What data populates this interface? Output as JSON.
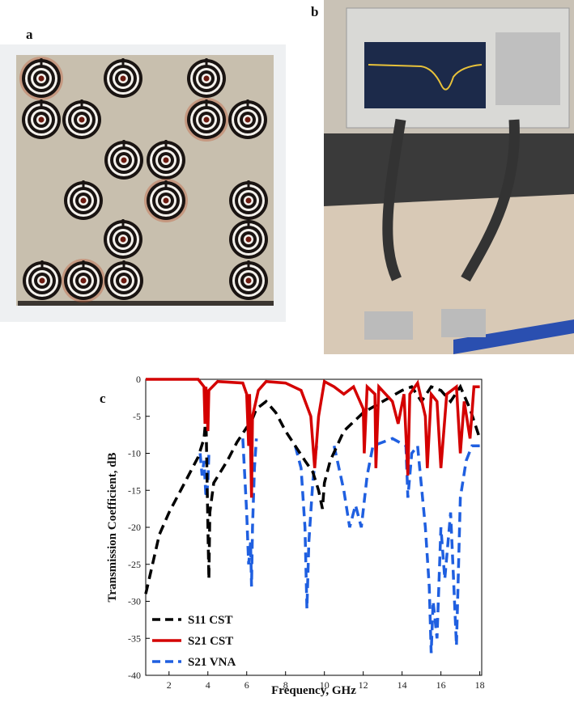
{
  "panel_labels": [
    "a",
    "b",
    "c"
  ],
  "chart_data": {
    "type": "line",
    "x_label": "Frequency, GHz",
    "y_label": "Transmission Coefficient, dB",
    "xlim": [
      0.8,
      18.1
    ],
    "ylim": [
      -40,
      0
    ],
    "xticks": [
      2,
      4,
      6,
      8,
      10,
      12,
      14,
      16,
      18
    ],
    "yticks": [
      0,
      -5,
      -10,
      -15,
      -20,
      -25,
      -30,
      -35,
      -40
    ],
    "legend": "lower left",
    "grid": false,
    "series": [
      {
        "name": "S11 CST",
        "color": "#000000",
        "dash": "dashed",
        "x": [
          0.8,
          1.5,
          2,
          2.5,
          3,
          3.5,
          3.8,
          3.9,
          4.0,
          4.05,
          4.1,
          4.3,
          5,
          5.5,
          6,
          6.2,
          6.5,
          7,
          7.5,
          8,
          8.5,
          9,
          9.4,
          9.7,
          9.9,
          10,
          10.3,
          11,
          12,
          13,
          14,
          14.5,
          15,
          15.5,
          16,
          16.5,
          17,
          17.5,
          18
        ],
        "values": [
          -29,
          -21,
          -18,
          -15.5,
          -13,
          -10.5,
          -8,
          -5,
          -20,
          -27,
          -18,
          -14,
          -11,
          -8.5,
          -6.5,
          -6,
          -4,
          -3,
          -4.5,
          -7,
          -9,
          -11,
          -12.5,
          -15,
          -17.5,
          -14,
          -11,
          -7,
          -4.5,
          -3,
          -1.5,
          -1,
          -3,
          -1,
          -1.5,
          -3,
          -1,
          -4,
          -8
        ]
      },
      {
        "name": "S21 CST",
        "color": "#d40000",
        "dash": "solid",
        "x": [
          0.8,
          3.5,
          3.8,
          3.85,
          3.9,
          4.0,
          4.05,
          4.5,
          5.8,
          6.0,
          6.1,
          6.15,
          6.25,
          6.3,
          6.6,
          7,
          8,
          8.8,
          9.3,
          9.5,
          9.7,
          10,
          10.5,
          11,
          11.5,
          12,
          12.05,
          12.2,
          12.6,
          12.65,
          12.8,
          13.5,
          13.8,
          14.1,
          14.3,
          14.4,
          14.8,
          15.2,
          15.3,
          15.5,
          15.8,
          16,
          16.3,
          16.8,
          17,
          17.2,
          17.5,
          17.7,
          18
        ],
        "values": [
          0,
          0,
          -1,
          -6,
          -1,
          -7,
          -1.5,
          -0.3,
          -0.5,
          -2,
          -9,
          -2,
          -16,
          -5,
          -1.5,
          -0.3,
          -0.5,
          -1.5,
          -5,
          -12,
          -5,
          -0.3,
          -1,
          -2,
          -1,
          -4,
          -10,
          -1,
          -2,
          -12,
          -1,
          -3,
          -6,
          -2,
          -13,
          -2,
          -0.5,
          -5,
          -12,
          -2,
          -3,
          -12,
          -2,
          -1,
          -10,
          -3,
          -8,
          -1,
          -1
        ]
      },
      {
        "name": "S21 VNA",
        "color": "#1f5fe0",
        "dash": "dashed",
        "x": [
          3.6,
          3.7,
          3.8,
          3.9,
          4.0,
          4.05,
          5.0,
          5.8,
          6.0,
          6.1,
          6.2,
          6.25,
          6.3,
          6.4,
          6.5,
          7.5,
          8.5,
          8.8,
          9.0,
          9.1,
          9.2,
          9.4,
          9.6,
          10.0,
          10.5,
          11.0,
          11.3,
          11.6,
          11.9,
          12.2,
          12.5,
          13.5,
          14.2,
          14.3,
          14.5,
          14.8,
          15.2,
          15.4,
          15.5,
          15.6,
          15.8,
          16,
          16.2,
          16.5,
          16.8,
          17,
          17.3,
          17.6,
          18
        ],
        "values": [
          -10,
          -13,
          -11,
          -16,
          -14,
          -10,
          null,
          -8,
          -18,
          -25,
          -22,
          -28,
          -20,
          -12,
          -8,
          null,
          -9,
          -12,
          -20,
          -31,
          -22,
          -14,
          -9,
          null,
          -9,
          -15,
          -20,
          -17,
          -20,
          -13,
          -9,
          -8,
          -9,
          -16,
          -10,
          -9,
          -20,
          -28,
          -37,
          -30,
          -35,
          -20,
          -27,
          -18,
          -36,
          -16,
          -11,
          -9,
          -9
        ]
      }
    ]
  }
}
